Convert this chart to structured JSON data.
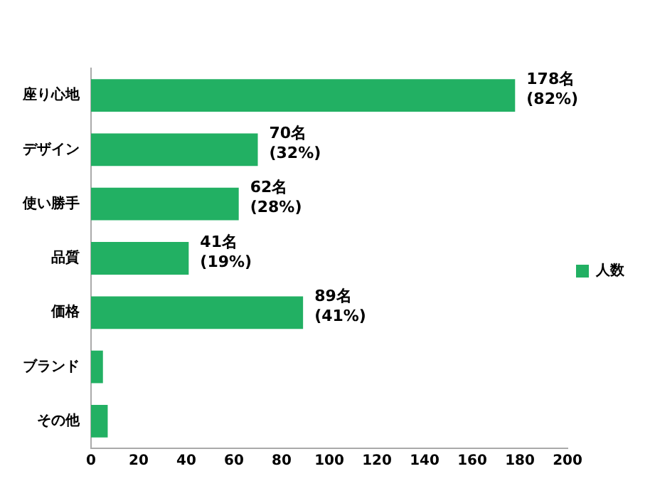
{
  "chart_data": {
    "type": "bar",
    "orientation": "horizontal",
    "categories": [
      "座り心地",
      "デザイン",
      "使い勝手",
      "品質",
      "価格",
      "ブランド",
      "その他"
    ],
    "series": [
      {
        "name": "人数",
        "color": "#22b063",
        "values": [
          178,
          70,
          62,
          41,
          89,
          5,
          7
        ],
        "value_labels": [
          "178名\n(82%)",
          "70名\n(32%)",
          "62名\n(28%)",
          "41名\n(19%)",
          "89名\n(41%)",
          null,
          null
        ]
      }
    ],
    "xlim": [
      0,
      200
    ],
    "xticks": [
      0,
      20,
      40,
      60,
      80,
      100,
      120,
      140,
      160,
      180,
      200
    ],
    "grid": false,
    "legend": "right"
  }
}
